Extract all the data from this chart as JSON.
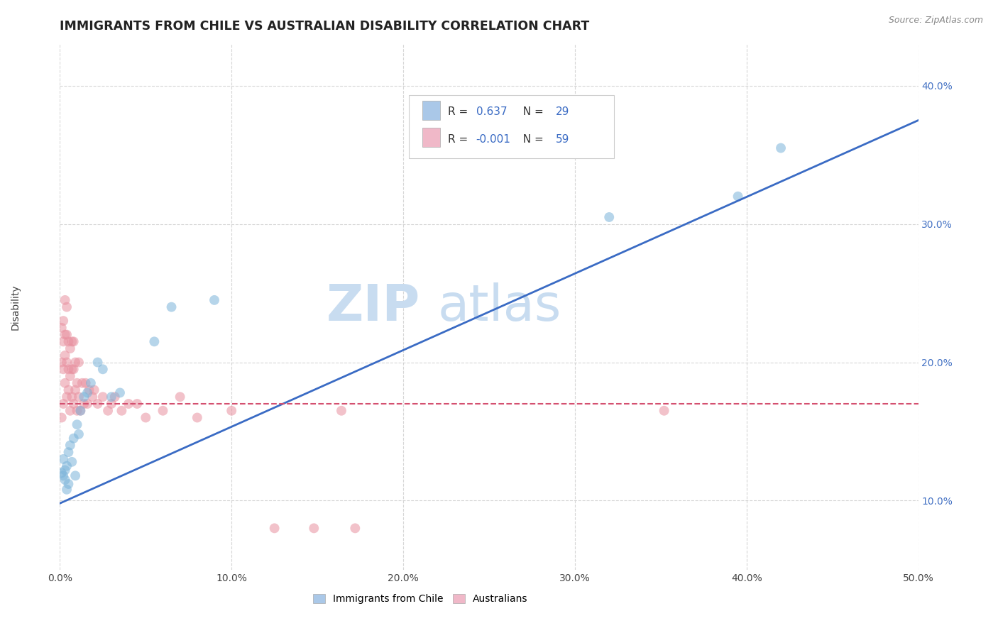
{
  "title": "IMMIGRANTS FROM CHILE VS AUSTRALIAN DISABILITY CORRELATION CHART",
  "source": "Source: ZipAtlas.com",
  "ylabel": "Disability",
  "xlim": [
    0.0,
    0.5
  ],
  "ylim": [
    0.05,
    0.43
  ],
  "xticks": [
    0.0,
    0.1,
    0.2,
    0.3,
    0.4,
    0.5
  ],
  "xtick_labels": [
    "0.0%",
    "10.0%",
    "20.0%",
    "30.0%",
    "40.0%",
    "50.0%"
  ],
  "yticks": [
    0.1,
    0.2,
    0.3,
    0.4
  ],
  "ytick_labels": [
    "10.0%",
    "20.0%",
    "30.0%",
    "40.0%"
  ],
  "legend_R1": "0.637",
  "legend_N1": "29",
  "legend_R2": "-0.001",
  "legend_N2": "59",
  "label_blue": "Immigrants from Chile",
  "label_pink": "Australians",
  "blue_scatter_x": [
    0.001,
    0.002,
    0.002,
    0.003,
    0.003,
    0.004,
    0.004,
    0.005,
    0.005,
    0.006,
    0.007,
    0.008,
    0.009,
    0.01,
    0.011,
    0.012,
    0.014,
    0.016,
    0.018,
    0.022,
    0.025,
    0.03,
    0.035,
    0.055,
    0.065,
    0.09,
    0.32,
    0.395,
    0.42
  ],
  "blue_scatter_y": [
    0.12,
    0.118,
    0.13,
    0.115,
    0.122,
    0.108,
    0.125,
    0.135,
    0.112,
    0.14,
    0.128,
    0.145,
    0.118,
    0.155,
    0.148,
    0.165,
    0.175,
    0.178,
    0.185,
    0.2,
    0.195,
    0.175,
    0.178,
    0.215,
    0.24,
    0.245,
    0.305,
    0.32,
    0.355
  ],
  "pink_scatter_x": [
    0.001,
    0.001,
    0.001,
    0.002,
    0.002,
    0.002,
    0.002,
    0.003,
    0.003,
    0.003,
    0.003,
    0.004,
    0.004,
    0.004,
    0.004,
    0.005,
    0.005,
    0.005,
    0.006,
    0.006,
    0.006,
    0.007,
    0.007,
    0.007,
    0.008,
    0.008,
    0.008,
    0.009,
    0.009,
    0.01,
    0.01,
    0.011,
    0.011,
    0.012,
    0.013,
    0.014,
    0.015,
    0.016,
    0.017,
    0.019,
    0.02,
    0.022,
    0.025,
    0.028,
    0.03,
    0.032,
    0.036,
    0.04,
    0.045,
    0.05,
    0.06,
    0.07,
    0.08,
    0.1,
    0.125,
    0.148,
    0.164,
    0.172,
    0.352
  ],
  "pink_scatter_y": [
    0.16,
    0.2,
    0.225,
    0.17,
    0.195,
    0.215,
    0.23,
    0.185,
    0.205,
    0.22,
    0.245,
    0.175,
    0.2,
    0.22,
    0.24,
    0.18,
    0.195,
    0.215,
    0.165,
    0.19,
    0.21,
    0.175,
    0.195,
    0.215,
    0.17,
    0.195,
    0.215,
    0.18,
    0.2,
    0.165,
    0.185,
    0.175,
    0.2,
    0.165,
    0.185,
    0.17,
    0.185,
    0.17,
    0.18,
    0.175,
    0.18,
    0.17,
    0.175,
    0.165,
    0.17,
    0.175,
    0.165,
    0.17,
    0.17,
    0.16,
    0.165,
    0.175,
    0.16,
    0.165,
    0.08,
    0.08,
    0.165,
    0.08,
    0.165
  ],
  "blue_line_x": [
    0.0,
    0.5
  ],
  "blue_line_y": [
    0.098,
    0.375
  ],
  "pink_line_x": [
    0.0,
    0.5
  ],
  "pink_line_y": [
    0.17,
    0.17
  ],
  "scatter_size": 100,
  "blue_color": "#7ab3d9",
  "pink_color": "#e8909f",
  "blue_line_color": "#3a6bc4",
  "pink_line_color": "#d45070",
  "blue_legend_color": "#aac8e8",
  "pink_legend_color": "#f0b8c8",
  "title_fontsize": 12.5,
  "axis_label_fontsize": 10,
  "tick_fontsize": 10,
  "right_tick_color": "#4472c4",
  "watermark_zip_color": "#c8dcf0",
  "watermark_atlas_color": "#c8dcf0"
}
